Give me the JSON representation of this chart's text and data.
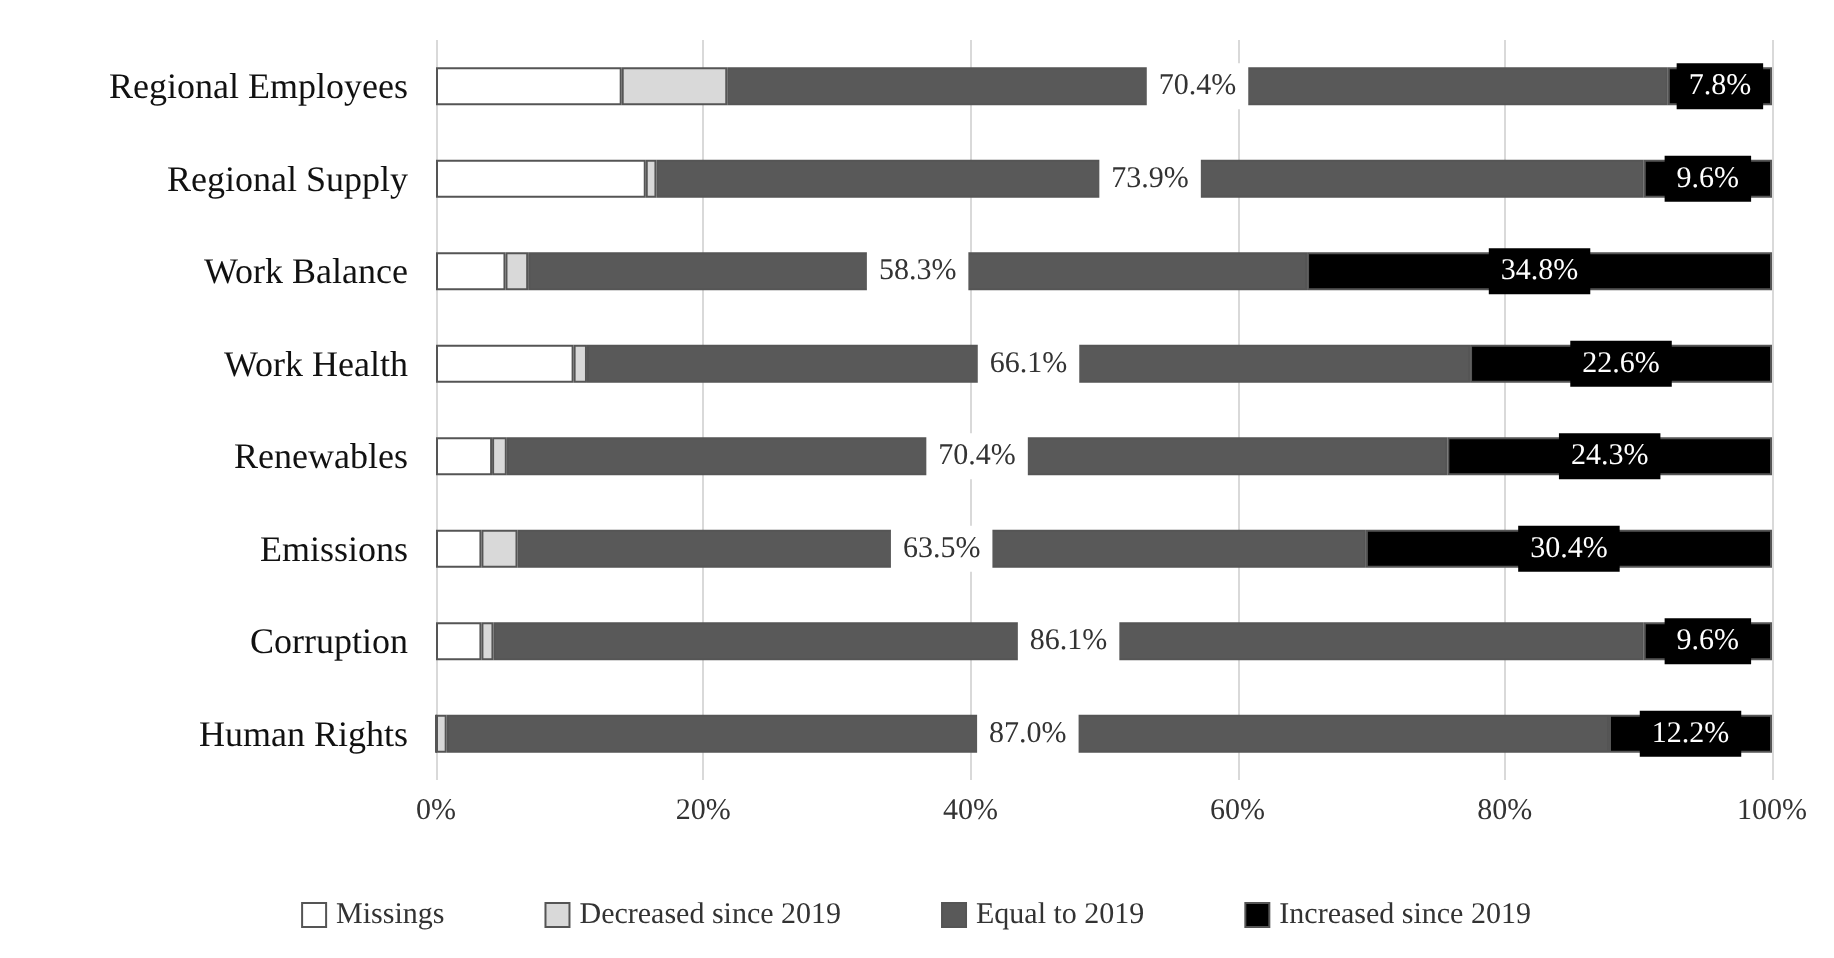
{
  "chart_data": {
    "type": "bar",
    "orientation": "horizontal",
    "stacked": true,
    "categories": [
      "Regional Employees",
      "Regional Supply",
      "Work Balance",
      "Work Health",
      "Renewables",
      "Emissions",
      "Corruption",
      "Human Rights"
    ],
    "series": [
      {
        "name": "Missings",
        "color": "#ffffff",
        "values": [
          13.9,
          15.7,
          5.2,
          10.3,
          4.2,
          3.4,
          3.4,
          0
        ],
        "value_labels": [
          null,
          null,
          null,
          null,
          null,
          null,
          null,
          null
        ]
      },
      {
        "name": "Decreased since 2019",
        "color": "#d9d9d9",
        "values": [
          7.9,
          0.8,
          1.7,
          1.0,
          1.1,
          2.7,
          0.9,
          0.8
        ],
        "value_labels": [
          null,
          null,
          null,
          null,
          null,
          null,
          null,
          null
        ]
      },
      {
        "name": "Equal to 2019",
        "color": "#595959",
        "values": [
          70.4,
          73.9,
          58.3,
          66.1,
          70.4,
          63.5,
          86.1,
          87.0
        ],
        "value_labels": [
          "70.4%",
          "73.9%",
          "58.3%",
          "66.1%",
          "70.4%",
          "63.5%",
          "86.1%",
          "87.0%"
        ]
      },
      {
        "name": "Increased since 2019",
        "color": "#000000",
        "values": [
          7.8,
          9.6,
          34.8,
          22.6,
          24.3,
          30.4,
          9.6,
          12.2
        ],
        "value_labels": [
          "7.8%",
          "9.6%",
          "34.8%",
          "22.6%",
          "24.3%",
          "30.4%",
          "9.6%",
          "12.2%"
        ]
      }
    ],
    "xlim": [
      0,
      100
    ],
    "xticks": [
      {
        "value": 0,
        "label": "0%"
      },
      {
        "value": 20,
        "label": "20%"
      },
      {
        "value": 40,
        "label": "40%"
      },
      {
        "value": 60,
        "label": "60%"
      },
      {
        "value": 80,
        "label": "80%"
      },
      {
        "value": 100,
        "label": "100%"
      }
    ],
    "grid": "x",
    "legend": "bottom"
  }
}
